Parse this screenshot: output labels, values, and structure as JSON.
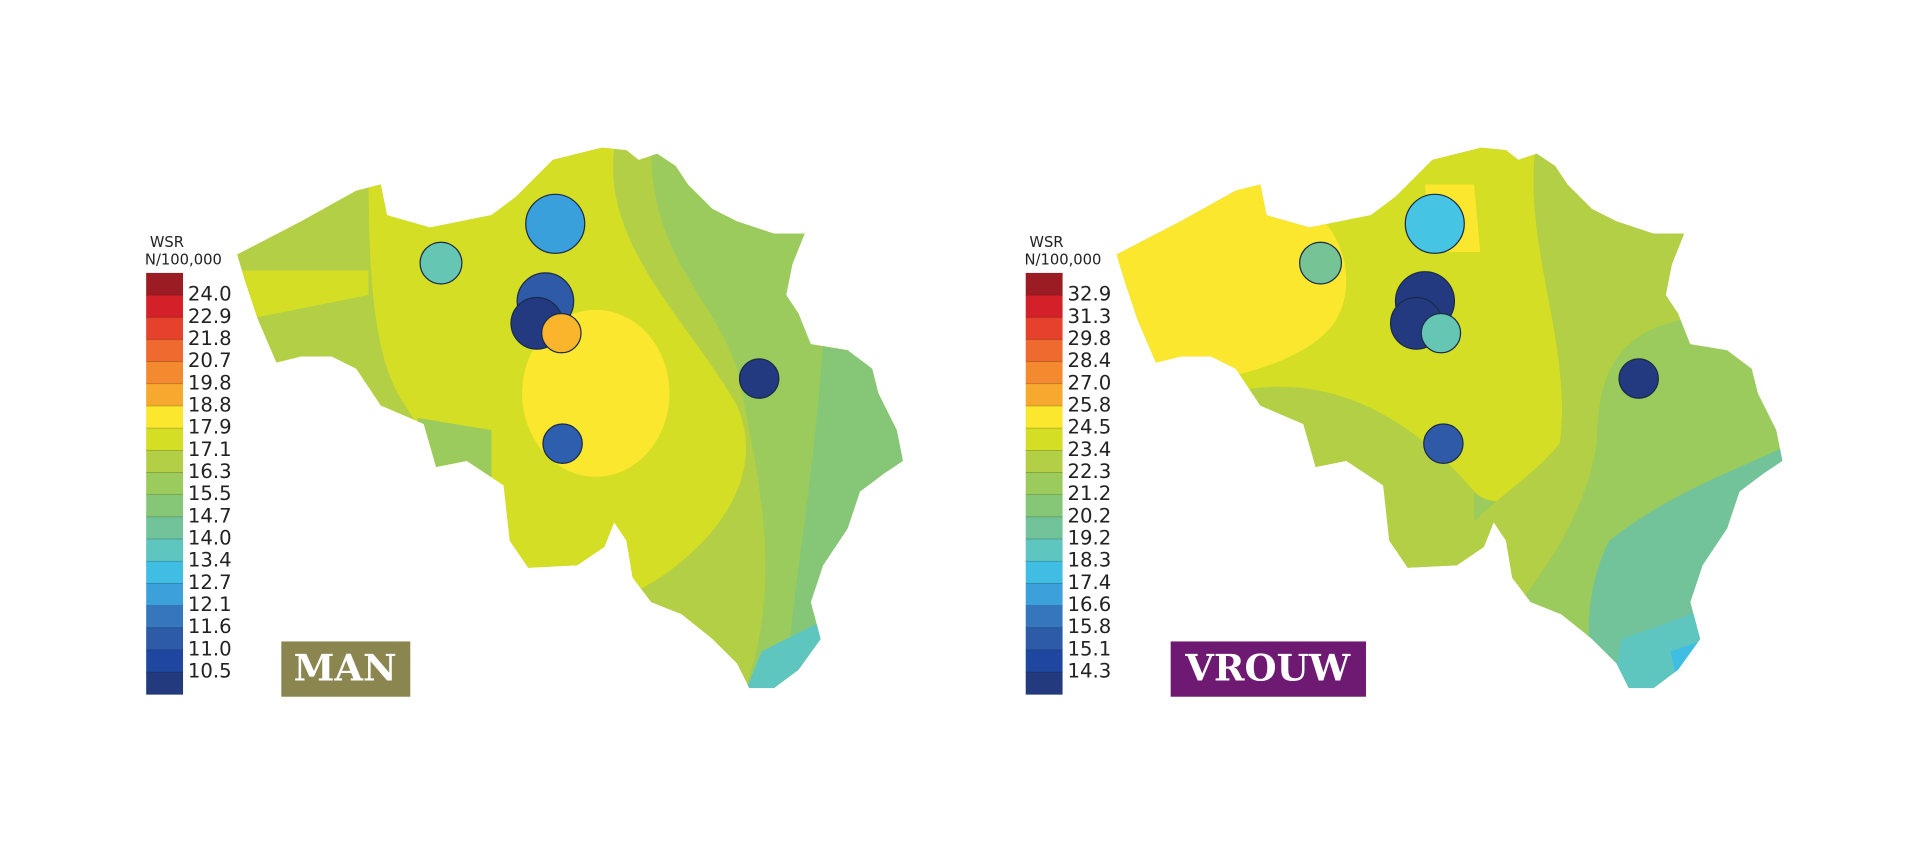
{
  "maps": [
    {
      "legend_title": "WSR",
      "legend_unit": "N/100,000",
      "label": "MAN",
      "legend_labels": [
        "24.0",
        "22.9",
        "21.8",
        "20.7",
        "19.8",
        "18.8",
        "17.9",
        "17.1",
        "16.3",
        "15.5",
        "14.7",
        "14.0",
        "13.4",
        "12.7",
        "12.1",
        "11.6",
        "11.0",
        "10.5"
      ]
    },
    {
      "legend_title": "WSR",
      "legend_unit": "N/100,000",
      "label": "VROUW",
      "legend_labels": [
        "32.9",
        "31.3",
        "29.8",
        "28.4",
        "27.0",
        "25.8",
        "24.5",
        "23.4",
        "22.3",
        "21.2",
        "20.2",
        "19.2",
        "18.3",
        "17.4",
        "16.6",
        "15.8",
        "15.1",
        "14.3"
      ]
    }
  ],
  "legend_colors": [
    "#9b1c22",
    "#d42028",
    "#e5412d",
    "#ee6a2f",
    "#f38a2f",
    "#f7a92f",
    "#fbe72e",
    "#d4de24",
    "#b3cf46",
    "#9acb5c",
    "#86c777",
    "#72c39a",
    "#5ec5bf",
    "#3fbde2",
    "#3ca0da",
    "#3576bd",
    "#2d5ba8",
    "#1f47a0",
    "#243a7e"
  ]
}
